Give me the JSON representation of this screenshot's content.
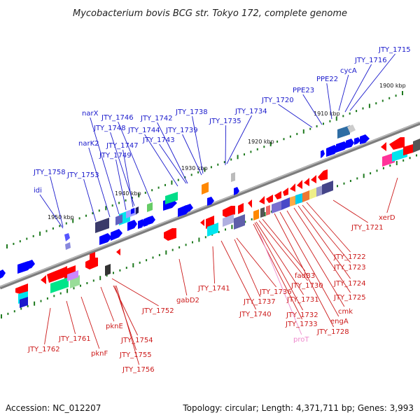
{
  "title": "Mycobacterium bovis BCG str. Tokyo 172, complete genome",
  "footer": {
    "accession": "Accession: NC_012207",
    "summary": "Topology: circular; Length: 4,371,711 bp; Genes: 3,993"
  },
  "colors": {
    "forward_label": "#1a1acc",
    "reverse_label": "#cc1a1a",
    "pseudo_label": "#ee88cc",
    "backbone": "#8a8a8a",
    "forward_gene": "#0000ff",
    "reverse_gene": "#ff0000",
    "tick": "#1f7a1f"
  },
  "scale_labels": [
    "1900 kbp",
    "1910 kbp",
    "1920 kbp",
    "1930 kbp",
    "1940 kbp",
    "1950 kbp"
  ],
  "forward_labels": [
    "JTY_1715",
    "JTY_1716",
    "cycA",
    "PPE22",
    "PPE23",
    "JTY_1720",
    "JTY_1734",
    "JTY_1735",
    "JTY_1738",
    "JTY_1739",
    "JTY_1742",
    "JTY_1743",
    "JTY_1744",
    "JTY_1746",
    "JTY_1748",
    "JTY_1747",
    "JTY_1749",
    "narX",
    "narK2",
    "JTY_1753",
    "JTY_1758",
    "idi"
  ],
  "reverse_labels": [
    "xerD",
    "JTY_1721",
    "JTY_1722",
    "JTY_1723",
    "JTY_1724",
    "JTY_1725",
    "cmk",
    "engA",
    "JTY_1728",
    "fadB3",
    "JTY_1730",
    "JTY_1731",
    "JTY_1732",
    "JTY_1733",
    "JTY_1736",
    "JTY_1737",
    "JTY_1740",
    "JTY_1741",
    "gabD2",
    "JTY_1752",
    "pknE",
    "JTY_1754",
    "JTY_1755",
    "JTY_1756",
    "pknF",
    "JTY_1761",
    "JTY_1762"
  ],
  "pseudo_labels": [
    "proT"
  ]
}
